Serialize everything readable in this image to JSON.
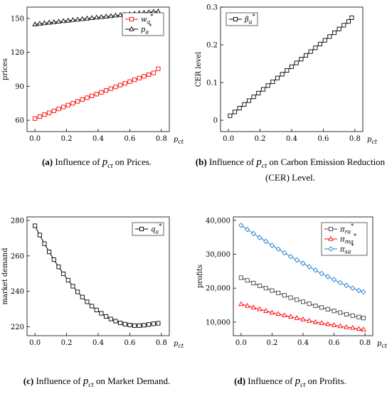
{
  "panels": [
    {
      "id": "a",
      "ylabel": "prices",
      "xaxis_label": "p_ct",
      "caption": {
        "letter": "(a)",
        "before": "Influence of",
        "var": "p_ct",
        "after": "on Prices."
      }
    },
    {
      "id": "b",
      "ylabel": "CER level",
      "xaxis_label": "p_ct",
      "caption": {
        "letter": "(b)",
        "before": "Influence of",
        "var": "p_ct",
        "after": "on Carbon Emission Reduction (CER) Level."
      }
    },
    {
      "id": "c",
      "ylabel": "market demand",
      "xaxis_label": "p_ct",
      "caption": {
        "letter": "(c)",
        "before": "Influence of",
        "var": "p_ct",
        "after": "on Market Demand."
      }
    },
    {
      "id": "d",
      "ylabel": "profits",
      "xaxis_label": "p_ct",
      "caption": {
        "letter": "(d)",
        "before": "Influence of",
        "var": "p_ct",
        "after": "on Profits."
      }
    }
  ],
  "chart_data": [
    {
      "type": "line",
      "panel": "a",
      "xlim": [
        -0.05,
        0.85
      ],
      "ylim": [
        50,
        160
      ],
      "xticks": [
        0.0,
        0.2,
        0.4,
        0.6,
        0.8
      ],
      "yticks": [
        60,
        90,
        120,
        150
      ],
      "xlabel": "p_ct",
      "ylabel": "prices",
      "legend_position": "top-right",
      "series": [
        {
          "name": "w_a*",
          "color": "#ff0000",
          "marker": "square",
          "x": [
            0,
            0.03,
            0.06,
            0.09,
            0.12,
            0.15,
            0.18,
            0.21,
            0.24,
            0.27,
            0.3,
            0.33,
            0.36,
            0.39,
            0.42,
            0.45,
            0.48,
            0.51,
            0.54,
            0.57,
            0.6,
            0.63,
            0.66,
            0.69,
            0.72,
            0.75,
            0.78
          ],
          "y": [
            61.5,
            63.2,
            64.9,
            66.6,
            68.3,
            70.0,
            71.7,
            73.4,
            75.0,
            76.7,
            78.3,
            79.9,
            81.5,
            83.1,
            84.7,
            86.3,
            87.9,
            89.5,
            91.1,
            92.6,
            94.2,
            95.7,
            97.3,
            98.8,
            100.3,
            101.8,
            105.5
          ]
        },
        {
          "name": "p_a*",
          "color": "#000000",
          "marker": "triangle",
          "x": [
            0,
            0.03,
            0.06,
            0.09,
            0.12,
            0.15,
            0.18,
            0.21,
            0.24,
            0.27,
            0.3,
            0.33,
            0.36,
            0.39,
            0.42,
            0.45,
            0.48,
            0.51,
            0.54,
            0.57,
            0.6,
            0.63,
            0.66,
            0.69,
            0.72,
            0.75,
            0.78
          ],
          "y": [
            144.8,
            145.3,
            145.8,
            146.3,
            146.7,
            147.2,
            147.7,
            148.1,
            148.6,
            149.0,
            149.5,
            149.9,
            150.4,
            150.8,
            151.3,
            151.7,
            152.1,
            152.6,
            153.0,
            153.4,
            153.8,
            154.2,
            154.6,
            155.0,
            155.4,
            155.8,
            156.2
          ]
        }
      ]
    },
    {
      "type": "line",
      "panel": "b",
      "xlim": [
        -0.05,
        0.85
      ],
      "ylim": [
        -0.03,
        0.3
      ],
      "xticks": [
        0.0,
        0.2,
        0.4,
        0.6,
        0.8
      ],
      "yticks": [
        0.0,
        0.1,
        0.2,
        0.3
      ],
      "xlabel": "p_ct",
      "ylabel": "CER level",
      "legend_position": "top-left",
      "series": [
        {
          "name": "β_a*",
          "color": "#000000",
          "marker": "square",
          "x": [
            0.01,
            0.04,
            0.07,
            0.1,
            0.13,
            0.16,
            0.19,
            0.22,
            0.25,
            0.28,
            0.31,
            0.34,
            0.37,
            0.4,
            0.43,
            0.46,
            0.49,
            0.52,
            0.55,
            0.58,
            0.61,
            0.64,
            0.67,
            0.7,
            0.73,
            0.76,
            0.78
          ],
          "y": [
            0.012,
            0.022,
            0.032,
            0.042,
            0.052,
            0.062,
            0.072,
            0.082,
            0.092,
            0.102,
            0.112,
            0.122,
            0.132,
            0.142,
            0.152,
            0.162,
            0.172,
            0.182,
            0.192,
            0.202,
            0.212,
            0.222,
            0.232,
            0.242,
            0.252,
            0.262,
            0.272
          ]
        }
      ]
    },
    {
      "type": "line",
      "panel": "c",
      "xlim": [
        -0.05,
        0.85
      ],
      "ylim": [
        215,
        282
      ],
      "xticks": [
        0.0,
        0.2,
        0.4,
        0.6,
        0.8
      ],
      "yticks": [
        220,
        240,
        260,
        280
      ],
      "xlabel": "p_ct",
      "ylabel": "market demand",
      "legend_position": "top-right",
      "series": [
        {
          "name": "q_a*",
          "color": "#000000",
          "marker": "square",
          "x": [
            0,
            0.03,
            0.06,
            0.09,
            0.12,
            0.15,
            0.18,
            0.21,
            0.24,
            0.27,
            0.3,
            0.33,
            0.36,
            0.39,
            0.42,
            0.45,
            0.48,
            0.51,
            0.54,
            0.57,
            0.6,
            0.63,
            0.66,
            0.69,
            0.72,
            0.75,
            0.78
          ],
          "y": [
            277.0,
            271.8,
            266.9,
            262.3,
            257.9,
            253.8,
            249.9,
            246.3,
            242.9,
            239.7,
            236.8,
            234.1,
            231.7,
            229.5,
            227.6,
            225.9,
            224.4,
            223.2,
            222.2,
            221.5,
            221.0,
            220.7,
            220.7,
            220.9,
            221.3,
            221.7,
            222.0
          ]
        }
      ]
    },
    {
      "type": "line",
      "panel": "d",
      "xlim": [
        -0.05,
        0.85
      ],
      "ylim": [
        6000,
        41000
      ],
      "xticks": [
        0.0,
        0.2,
        0.4,
        0.6,
        0.8
      ],
      "yticks": [
        10000,
        20000,
        30000,
        40000
      ],
      "ytick_labels": [
        "10,000",
        "20,000",
        "30,000",
        "40,000"
      ],
      "xlabel": "p_ct",
      "ylabel": "profits",
      "legend_position": "top-right",
      "series": [
        {
          "name": "π_ra*",
          "color": "#444444",
          "marker": "square",
          "x": [
            0,
            0.04,
            0.08,
            0.12,
            0.16,
            0.2,
            0.24,
            0.28,
            0.32,
            0.36,
            0.4,
            0.44,
            0.48,
            0.52,
            0.56,
            0.6,
            0.64,
            0.68,
            0.72,
            0.76,
            0.79
          ],
          "y": [
            23100,
            22300,
            21500,
            20700,
            20000,
            19300,
            18600,
            17900,
            17200,
            16600,
            16000,
            15400,
            14800,
            14300,
            13800,
            13300,
            12800,
            12300,
            11900,
            11500,
            11200
          ]
        },
        {
          "name": "π_ma*",
          "color": "#ff0000",
          "marker": "triangle",
          "x": [
            0,
            0.04,
            0.08,
            0.12,
            0.16,
            0.2,
            0.24,
            0.28,
            0.32,
            0.36,
            0.4,
            0.44,
            0.48,
            0.52,
            0.56,
            0.6,
            0.64,
            0.68,
            0.72,
            0.76,
            0.79
          ],
          "y": [
            15300,
            14800,
            14300,
            13800,
            13300,
            12800,
            12400,
            12000,
            11600,
            11200,
            10800,
            10400,
            10000,
            9700,
            9400,
            9100,
            8800,
            8500,
            8300,
            8000,
            7800
          ]
        },
        {
          "name": "π_sa*",
          "color": "#1f7fd6",
          "marker": "diamond",
          "x": [
            0,
            0.04,
            0.08,
            0.12,
            0.16,
            0.2,
            0.24,
            0.28,
            0.32,
            0.36,
            0.4,
            0.44,
            0.48,
            0.52,
            0.56,
            0.6,
            0.64,
            0.68,
            0.72,
            0.76,
            0.79
          ],
          "y": [
            38500,
            37300,
            36100,
            34900,
            33800,
            32600,
            31500,
            30400,
            29300,
            28300,
            27300,
            26300,
            25300,
            24300,
            23400,
            22500,
            21600,
            20800,
            20000,
            19300,
            18900
          ]
        }
      ]
    }
  ]
}
